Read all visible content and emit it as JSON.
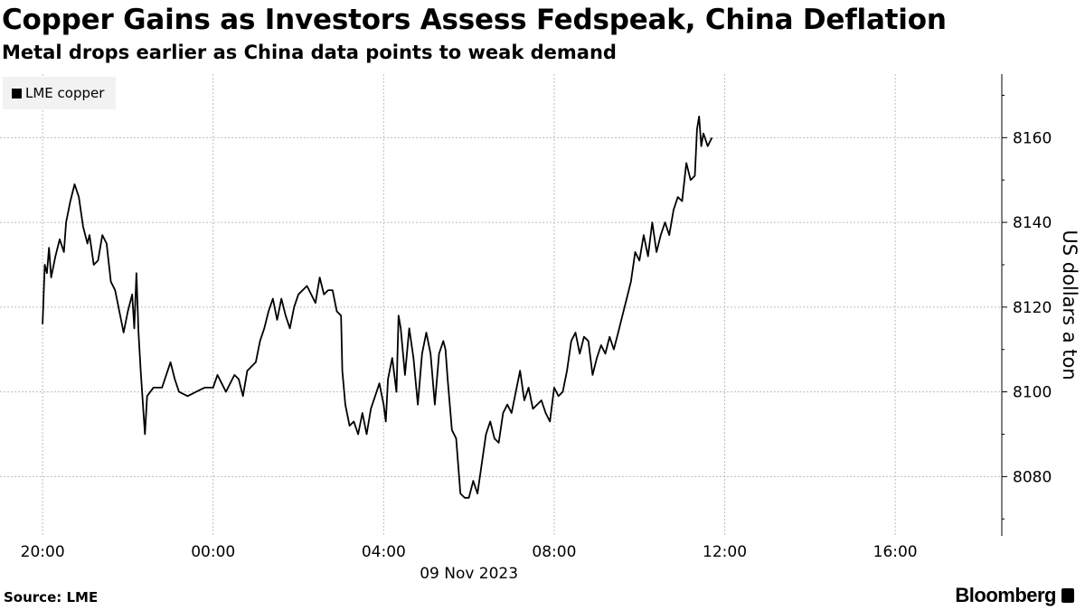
{
  "chart_data": {
    "type": "line",
    "title": "Copper Gains as Investors Assess Fedspeak, China Deflation",
    "subtitle": "Metal drops earlier as China data points to weak demand",
    "xlabel": "09 Nov 2023",
    "ylabel": "US dollars a ton",
    "x_tick_labels": [
      "20:00",
      "00:00",
      "04:00",
      "08:00",
      "12:00",
      "16:00"
    ],
    "x_ticks_hours": [
      20,
      24,
      28,
      32,
      36,
      40
    ],
    "xlim_hours": [
      19.0,
      42.5
    ],
    "y_ticks": [
      8080,
      8100,
      8120,
      8140,
      8160
    ],
    "ylim": [
      8066,
      8175
    ],
    "grid": true,
    "legend_position": "top-left",
    "series": [
      {
        "name": "LME copper",
        "color": "#000000",
        "points": [
          [
            20.0,
            8116
          ],
          [
            20.05,
            8130
          ],
          [
            20.1,
            8128
          ],
          [
            20.15,
            8134
          ],
          [
            20.2,
            8127
          ],
          [
            20.3,
            8132
          ],
          [
            20.4,
            8136
          ],
          [
            20.5,
            8133
          ],
          [
            20.55,
            8140
          ],
          [
            20.65,
            8145
          ],
          [
            20.75,
            8149
          ],
          [
            20.85,
            8146
          ],
          [
            20.95,
            8139
          ],
          [
            21.05,
            8135
          ],
          [
            21.1,
            8137
          ],
          [
            21.2,
            8130
          ],
          [
            21.3,
            8131
          ],
          [
            21.4,
            8137
          ],
          [
            21.5,
            8135
          ],
          [
            21.6,
            8126
          ],
          [
            21.7,
            8124
          ],
          [
            21.8,
            8119
          ],
          [
            21.9,
            8114
          ],
          [
            22.0,
            8119
          ],
          [
            22.1,
            8123
          ],
          [
            22.15,
            8115
          ],
          [
            22.2,
            8128
          ],
          [
            22.25,
            8114
          ],
          [
            22.3,
            8105
          ],
          [
            22.4,
            8090
          ],
          [
            22.45,
            8099
          ],
          [
            22.6,
            8101
          ],
          [
            22.8,
            8101
          ],
          [
            23.0,
            8107
          ],
          [
            23.1,
            8103
          ],
          [
            23.2,
            8100
          ],
          [
            23.4,
            8099
          ],
          [
            23.6,
            8100
          ],
          [
            23.8,
            8101
          ],
          [
            24.0,
            8101
          ],
          [
            24.1,
            8104
          ],
          [
            24.2,
            8102
          ],
          [
            24.3,
            8100
          ],
          [
            24.4,
            8102
          ],
          [
            24.5,
            8104
          ],
          [
            24.6,
            8103
          ],
          [
            24.7,
            8099
          ],
          [
            24.8,
            8105
          ],
          [
            24.9,
            8106
          ],
          [
            25.0,
            8107
          ],
          [
            25.1,
            8112
          ],
          [
            25.2,
            8115
          ],
          [
            25.3,
            8119
          ],
          [
            25.4,
            8122
          ],
          [
            25.5,
            8117
          ],
          [
            25.6,
            8122
          ],
          [
            25.7,
            8118
          ],
          [
            25.8,
            8115
          ],
          [
            25.9,
            8120
          ],
          [
            26.0,
            8123
          ],
          [
            26.2,
            8125
          ],
          [
            26.4,
            8121
          ],
          [
            26.5,
            8127
          ],
          [
            26.6,
            8123
          ],
          [
            26.7,
            8124
          ],
          [
            26.8,
            8124
          ],
          [
            26.9,
            8119
          ],
          [
            27.0,
            8118
          ],
          [
            27.03,
            8105
          ],
          [
            27.1,
            8097
          ],
          [
            27.2,
            8092
          ],
          [
            27.3,
            8093
          ],
          [
            27.4,
            8090
          ],
          [
            27.5,
            8095
          ],
          [
            27.6,
            8090
          ],
          [
            27.7,
            8096
          ],
          [
            27.8,
            8099
          ],
          [
            27.9,
            8102
          ],
          [
            28.0,
            8097
          ],
          [
            28.05,
            8093
          ],
          [
            28.1,
            8103
          ],
          [
            28.2,
            8108
          ],
          [
            28.3,
            8100
          ],
          [
            28.35,
            8118
          ],
          [
            28.4,
            8115
          ],
          [
            28.5,
            8104
          ],
          [
            28.6,
            8115
          ],
          [
            28.7,
            8108
          ],
          [
            28.8,
            8097
          ],
          [
            28.9,
            8109
          ],
          [
            29.0,
            8114
          ],
          [
            29.1,
            8109
          ],
          [
            29.2,
            8097
          ],
          [
            29.3,
            8109
          ],
          [
            29.4,
            8112
          ],
          [
            29.45,
            8110
          ],
          [
            29.5,
            8103
          ],
          [
            29.6,
            8091
          ],
          [
            29.7,
            8089
          ],
          [
            29.8,
            8076
          ],
          [
            29.9,
            8075
          ],
          [
            30.0,
            8075
          ],
          [
            30.1,
            8079
          ],
          [
            30.2,
            8076
          ],
          [
            30.3,
            8083
          ],
          [
            30.4,
            8090
          ],
          [
            30.5,
            8093
          ],
          [
            30.6,
            8089
          ],
          [
            30.7,
            8088
          ],
          [
            30.8,
            8095
          ],
          [
            30.9,
            8097
          ],
          [
            31.0,
            8095
          ],
          [
            31.1,
            8100
          ],
          [
            31.2,
            8105
          ],
          [
            31.3,
            8098
          ],
          [
            31.4,
            8101
          ],
          [
            31.5,
            8096
          ],
          [
            31.6,
            8097
          ],
          [
            31.7,
            8098
          ],
          [
            31.8,
            8095
          ],
          [
            31.9,
            8093
          ],
          [
            32.0,
            8101
          ],
          [
            32.1,
            8099
          ],
          [
            32.2,
            8100
          ],
          [
            32.3,
            8105
          ],
          [
            32.4,
            8112
          ],
          [
            32.5,
            8114
          ],
          [
            32.6,
            8109
          ],
          [
            32.7,
            8113
          ],
          [
            32.8,
            8112
          ],
          [
            32.9,
            8104
          ],
          [
            33.0,
            8108
          ],
          [
            33.1,
            8111
          ],
          [
            33.2,
            8109
          ],
          [
            33.3,
            8113
          ],
          [
            33.4,
            8110
          ],
          [
            33.5,
            8114
          ],
          [
            33.6,
            8118
          ],
          [
            33.7,
            8122
          ],
          [
            33.8,
            8126
          ],
          [
            33.9,
            8133
          ],
          [
            34.0,
            8131
          ],
          [
            34.1,
            8137
          ],
          [
            34.2,
            8132
          ],
          [
            34.3,
            8140
          ],
          [
            34.4,
            8133
          ],
          [
            34.5,
            8137
          ],
          [
            34.6,
            8140
          ],
          [
            34.7,
            8137
          ],
          [
            34.8,
            8143
          ],
          [
            34.9,
            8146
          ],
          [
            35.0,
            8145
          ],
          [
            35.1,
            8154
          ],
          [
            35.2,
            8150
          ],
          [
            35.3,
            8151
          ],
          [
            35.35,
            8162
          ],
          [
            35.4,
            8165
          ],
          [
            35.45,
            8158
          ],
          [
            35.5,
            8161
          ],
          [
            35.6,
            8158
          ],
          [
            35.7,
            8160
          ]
        ]
      }
    ]
  },
  "legend": {
    "items": [
      {
        "label": "LME copper",
        "color": "#000000"
      }
    ]
  },
  "footer": {
    "source": "Source: LME",
    "brand": "Bloomberg"
  }
}
